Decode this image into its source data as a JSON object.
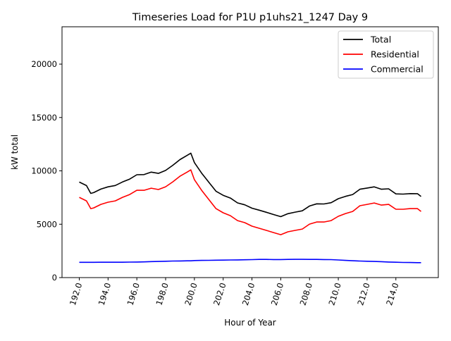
{
  "chart_data": {
    "type": "line",
    "title": "Timeseries Load for P1U p1uhs21_1247  Day 9",
    "xlabel": "Hour of Year",
    "ylabel": "kW total",
    "xlim": [
      190.8,
      216.95
    ],
    "ylim": [
      0,
      23500
    ],
    "xticks": [
      192,
      194,
      196,
      198,
      200,
      202,
      204,
      206,
      208,
      210,
      212,
      214
    ],
    "xtick_labels": [
      "192.0",
      "194.0",
      "196.0",
      "198.0",
      "200.0",
      "202.0",
      "204.0",
      "206.0",
      "208.0",
      "210.0",
      "212.0",
      "214.0"
    ],
    "yticks": [
      0,
      5000,
      10000,
      15000,
      20000
    ],
    "ytick_labels": [
      "0",
      "5000",
      "10000",
      "15000",
      "20000"
    ],
    "grid": false,
    "legend_position": "top-right",
    "x": [
      192,
      192.5,
      192.8,
      193,
      193.5,
      194,
      194.5,
      195,
      195.5,
      196,
      196.5,
      197,
      197.5,
      198,
      198.5,
      199,
      199.5,
      199.75,
      200,
      200.5,
      201,
      201.5,
      202,
      202.5,
      203,
      203.5,
      204,
      204.5,
      205,
      205.5,
      206,
      206.5,
      207,
      207.5,
      208,
      208.5,
      209,
      209.5,
      210,
      210.5,
      211,
      211.5,
      212,
      212.5,
      213,
      213.5,
      214,
      214.5,
      215,
      215.5,
      215.75
    ],
    "series": [
      {
        "name": "Total",
        "color": "#000000",
        "values": [
          8950,
          8620,
          7890,
          7960,
          8290,
          8500,
          8630,
          8960,
          9230,
          9640,
          9650,
          9880,
          9760,
          10040,
          10520,
          11060,
          11460,
          11660,
          10770,
          9790,
          8940,
          8090,
          7710,
          7450,
          7000,
          6820,
          6500,
          6320,
          6120,
          5910,
          5710,
          5990,
          6130,
          6260,
          6710,
          6910,
          6900,
          7020,
          7390,
          7610,
          7780,
          8280,
          8390,
          8500,
          8280,
          8320,
          7840,
          7820,
          7870,
          7860,
          7600
        ]
      },
      {
        "name": "Residential",
        "color": "#ff0000",
        "values": [
          7520,
          7190,
          6460,
          6530,
          6860,
          7060,
          7190,
          7520,
          7780,
          8180,
          8180,
          8380,
          8250,
          8510,
          8970,
          9500,
          9890,
          10090,
          9170,
          8180,
          7320,
          6460,
          6070,
          5800,
          5340,
          5150,
          4820,
          4620,
          4420,
          4220,
          4020,
          4290,
          4420,
          4550,
          5010,
          5210,
          5210,
          5340,
          5740,
          6000,
          6200,
          6730,
          6860,
          6990,
          6790,
          6860,
          6400,
          6400,
          6460,
          6460,
          6200
        ]
      },
      {
        "name": "Commercial",
        "color": "#0000ff",
        "values": [
          1430,
          1430,
          1430,
          1430,
          1440,
          1440,
          1440,
          1440,
          1450,
          1460,
          1470,
          1500,
          1510,
          1530,
          1550,
          1560,
          1570,
          1570,
          1600,
          1610,
          1620,
          1630,
          1640,
          1650,
          1660,
          1670,
          1680,
          1700,
          1700,
          1690,
          1690,
          1700,
          1710,
          1710,
          1700,
          1700,
          1690,
          1680,
          1650,
          1610,
          1580,
          1550,
          1530,
          1510,
          1490,
          1460,
          1440,
          1420,
          1410,
          1400,
          1400
        ]
      }
    ]
  }
}
